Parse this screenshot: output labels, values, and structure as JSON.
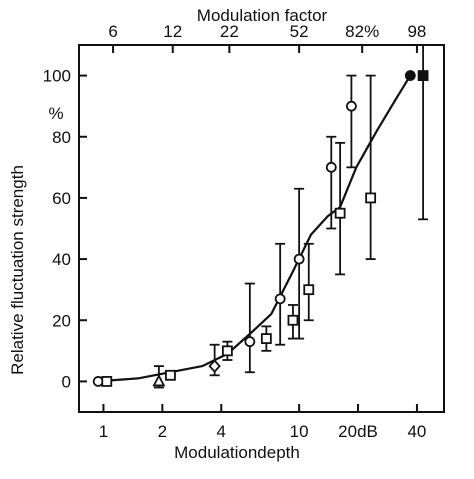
{
  "chart_data": {
    "type": "scatter",
    "title": "",
    "xlabel": "Modulationdepth",
    "ylabel": "Relative fluctuation strength",
    "y_unit": "%",
    "x2label": "Modulation factor",
    "x_scale": "log",
    "xlim": [
      0.75,
      55
    ],
    "ylim": [
      -10,
      110
    ],
    "grid": false,
    "x_ticks": [
      1,
      2,
      4,
      10,
      20,
      40
    ],
    "x_tick_labels": [
      "1",
      "2",
      "4",
      "10",
      "20dB",
      "40"
    ],
    "x2_ticks": [
      1.12,
      2.26,
      4.4,
      10,
      21,
      40
    ],
    "x2_tick_labels": [
      "6",
      "12",
      "22",
      "52",
      "82%",
      "98"
    ],
    "y_ticks": [
      0,
      20,
      40,
      60,
      80,
      100
    ],
    "y_tick_labels": [
      "0",
      "20",
      "40",
      "60",
      "80",
      "100"
    ],
    "series": [
      {
        "marker": "circle",
        "points": [
          {
            "x": 0.94,
            "y": 0
          },
          {
            "x": 5.6,
            "y": 13,
            "err_low": 3,
            "err_high": 32
          },
          {
            "x": 8,
            "y": 27,
            "err_low": 12,
            "err_high": 45
          },
          {
            "x": 10,
            "y": 40,
            "err_low": 14,
            "err_high": 63
          },
          {
            "x": 14.6,
            "y": 70,
            "err_low": 50,
            "err_high": 80
          },
          {
            "x": 18.5,
            "y": 90,
            "err_low": 70,
            "err_high": 100
          },
          {
            "x": 37,
            "y": 100
          }
        ]
      },
      {
        "marker": "square",
        "points": [
          {
            "x": 1.04,
            "y": 0
          },
          {
            "x": 2.2,
            "y": 2
          },
          {
            "x": 4.3,
            "y": 10,
            "err_low": 7,
            "err_high": 13
          },
          {
            "x": 6.8,
            "y": 14,
            "err_low": 10,
            "err_high": 18
          },
          {
            "x": 9.3,
            "y": 20,
            "err_low": 14,
            "err_high": 25
          },
          {
            "x": 11.2,
            "y": 30,
            "err_low": 20,
            "err_high": 45
          },
          {
            "x": 16.2,
            "y": 55,
            "err_low": 35,
            "err_high": 78
          },
          {
            "x": 23.2,
            "y": 60,
            "err_low": 40,
            "err_high": 100
          },
          {
            "x": 43,
            "y": 100,
            "err_low": 53,
            "err_high": 110
          }
        ]
      },
      {
        "marker": "triangle",
        "points": [
          {
            "x": 1.92,
            "y": 0,
            "err_low": -2,
            "err_high": 5
          }
        ]
      },
      {
        "marker": "diamond",
        "points": [
          {
            "x": 3.7,
            "y": 5,
            "err_low": 2,
            "err_high": 12
          }
        ]
      }
    ],
    "fit_curve": {
      "x": [
        0.92,
        1.5,
        2.2,
        3.2,
        4.3,
        5.7,
        7.2,
        9.3,
        11.5,
        14,
        16.2,
        19.6,
        25,
        31,
        37
      ],
      "y": [
        0,
        1,
        3,
        5,
        9,
        16,
        22,
        36,
        48,
        54,
        57,
        70,
        82,
        92,
        100
      ]
    }
  }
}
